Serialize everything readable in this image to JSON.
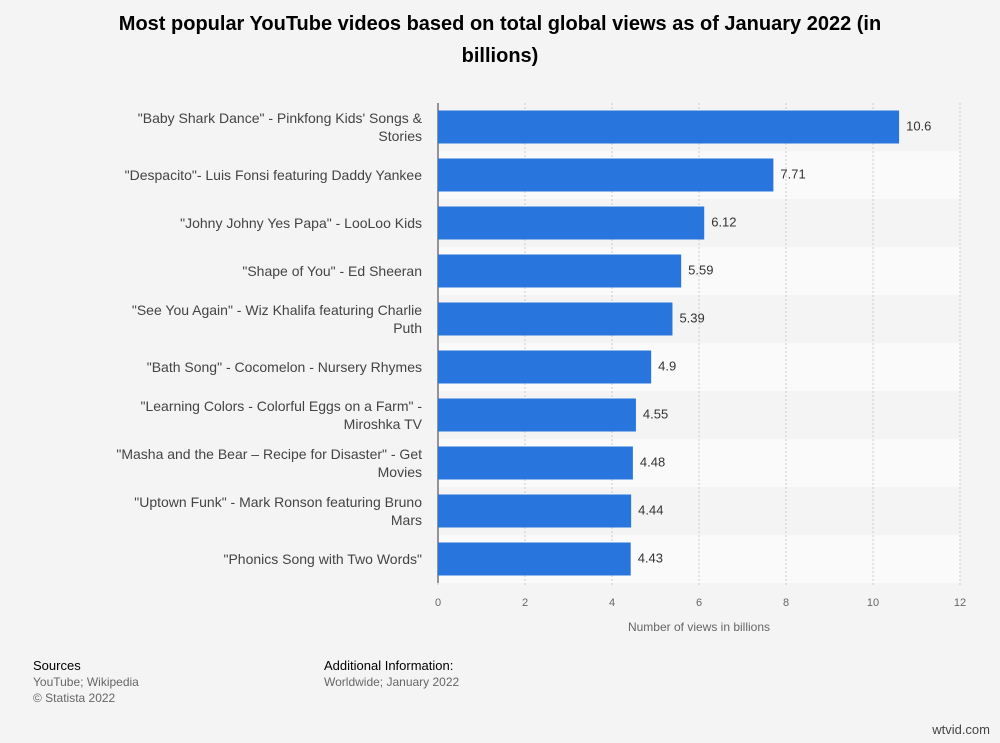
{
  "chart_data": {
    "type": "bar",
    "orientation": "horizontal",
    "title": "Most popular YouTube videos based on total global views as of January 2022 (in billions)",
    "categories": [
      "\"Baby Shark Dance\" - Pinkfong Kids' Songs & Stories",
      "\"Despacito\"- Luis Fonsi featuring Daddy Yankee",
      "\"Johny Johny Yes Papa\" - LooLoo Kids",
      "\"Shape of You\" - Ed Sheeran",
      "\"See You Again\" - Wiz Khalifa featuring Charlie Puth",
      "\"Bath Song\" - Cocomelon - Nursery Rhymes",
      "\"Learning Colors - Colorful Eggs on a Farm\" - Miroshka TV",
      "\"Masha and the Bear – Recipe for Disaster\" - Get Movies",
      "\"Uptown Funk\" - Mark Ronson featuring Bruno Mars",
      "\"Phonics Song with Two Words\""
    ],
    "values": [
      10.6,
      7.71,
      6.12,
      5.59,
      5.39,
      4.9,
      4.55,
      4.48,
      4.44,
      4.43
    ],
    "color": "#2876dd",
    "xlabel": "Number of views in billions",
    "xlim": [
      0,
      12
    ],
    "xticks": [
      0,
      2,
      4,
      6,
      8,
      10,
      12
    ],
    "grid": true
  },
  "footer": {
    "sources_title": "Sources",
    "sources": "YouTube; Wikipedia",
    "copyright": "© Statista 2022",
    "info_title": "Additional Information:",
    "info": "Worldwide; January 2022",
    "watermark": "wtvid.com"
  }
}
